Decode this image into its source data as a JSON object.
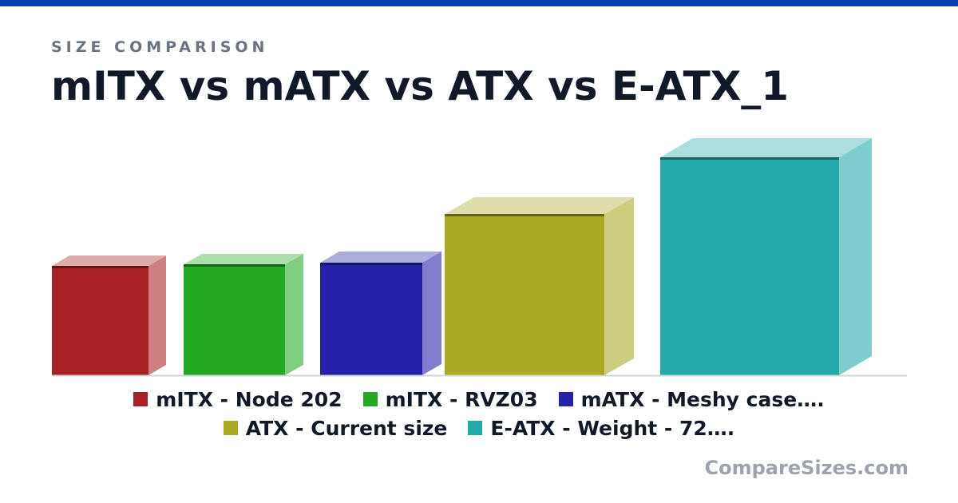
{
  "header": {
    "eyebrow": "SIZE COMPARISON",
    "title": "mITX vs mATX vs ATX vs E-ATX_1",
    "accent_color": "#0f3fae"
  },
  "chart_data": {
    "type": "bar",
    "style": "3d-box",
    "grid": false,
    "axes_visible": false,
    "legend_position": "bottom",
    "categories": [
      "mITX - Node 202",
      "mITX - RVZ03",
      "mATX - Meshy case....",
      "ATX - Current size",
      "E-ATX - Weight - 72...."
    ],
    "series": [
      {
        "name": "mITX - Node 202",
        "height": 137,
        "width": 121,
        "color": "#a82225"
      },
      {
        "name": "mITX - RVZ03",
        "height": 139,
        "width": 127,
        "color": "#23a923"
      },
      {
        "name": "mATX - Meshy case....",
        "height": 141,
        "width": 128,
        "color": "#2521a9"
      },
      {
        "name": "ATX - Current size",
        "height": 202,
        "width": 200,
        "color": "#a9a924"
      },
      {
        "name": "E-ATX - Weight - 72....",
        "height": 273,
        "width": 224,
        "color": "#24a9a9"
      }
    ]
  },
  "legend": {
    "rows": [
      [
        {
          "label": "mITX - Node 202",
          "color": "#a82225"
        },
        {
          "label": "mITX - RVZ03",
          "color": "#23a923"
        },
        {
          "label": "mATX - Meshy case….",
          "color": "#2521a9"
        }
      ],
      [
        {
          "label": "ATX - Current size",
          "color": "#a9a924"
        },
        {
          "label": "E-ATX - Weight - 72….",
          "color": "#24a9a9"
        }
      ]
    ]
  },
  "footer": {
    "brand": "CompareSizes.com"
  }
}
